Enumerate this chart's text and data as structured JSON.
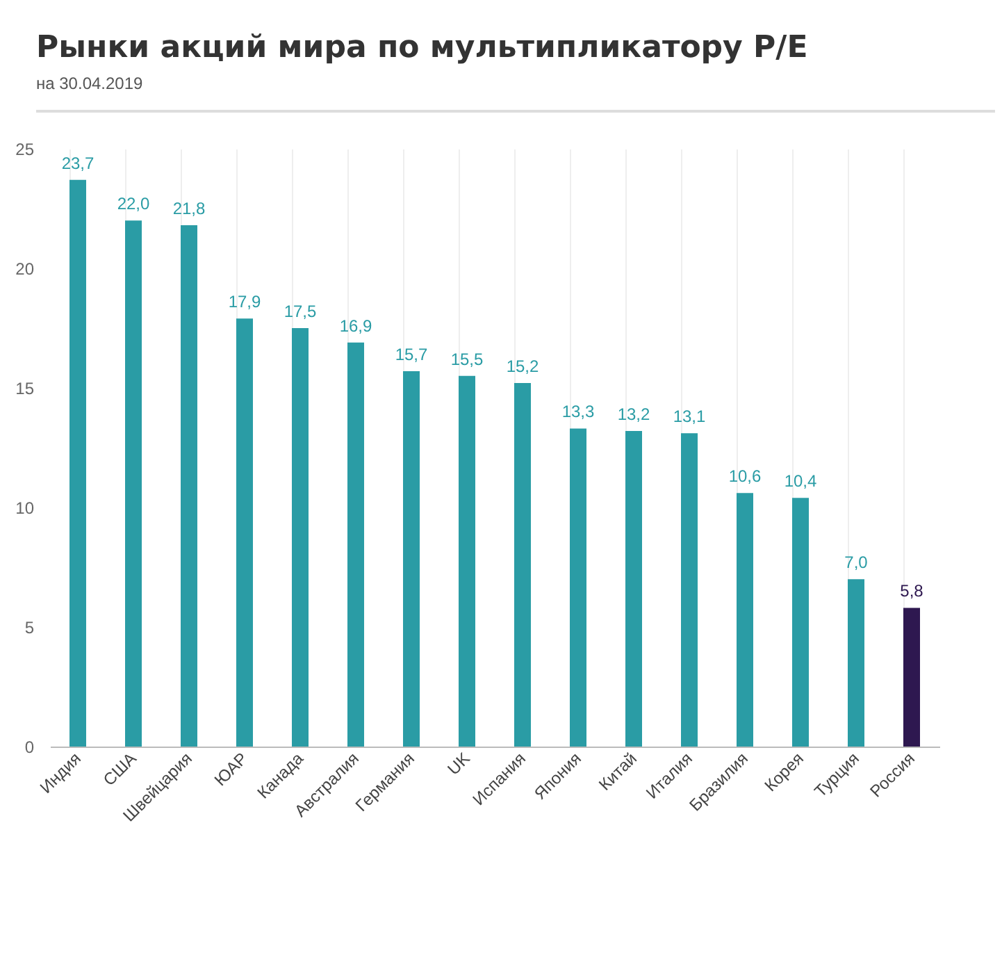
{
  "chart_data": {
    "type": "bar",
    "title": "Рынки акций мира по мультипликатору P/E",
    "subtitle": "на 30.04.2019",
    "categories": [
      "Индия",
      "США",
      "Швейцария",
      "ЮАР",
      "Канада",
      "Австралия",
      "Германия",
      "UK",
      "Испания",
      "Япония",
      "Китай",
      "Италия",
      "Бразилия",
      "Корея",
      "Турция",
      "Россия"
    ],
    "values": [
      23.7,
      22.0,
      21.8,
      17.9,
      17.5,
      16.9,
      15.7,
      15.5,
      15.2,
      13.3,
      13.2,
      13.1,
      10.6,
      10.4,
      7.0,
      5.8
    ],
    "value_labels": [
      "23,7",
      "22,0",
      "21,8",
      "17,9",
      "17,5",
      "16,9",
      "15,7",
      "15,5",
      "15,2",
      "13,3",
      "13,2",
      "13,1",
      "10,6",
      "10,4",
      "7,0",
      "5,8"
    ],
    "colors": [
      "#2a9ca5",
      "#2a9ca5",
      "#2a9ca5",
      "#2a9ca5",
      "#2a9ca5",
      "#2a9ca5",
      "#2a9ca5",
      "#2a9ca5",
      "#2a9ca5",
      "#2a9ca5",
      "#2a9ca5",
      "#2a9ca5",
      "#2a9ca5",
      "#2a9ca5",
      "#2a9ca5",
      "#2e1850"
    ],
    "ylim": [
      0,
      25
    ],
    "yticks": [
      0,
      5,
      10,
      15,
      20,
      25
    ],
    "grid": "x"
  }
}
